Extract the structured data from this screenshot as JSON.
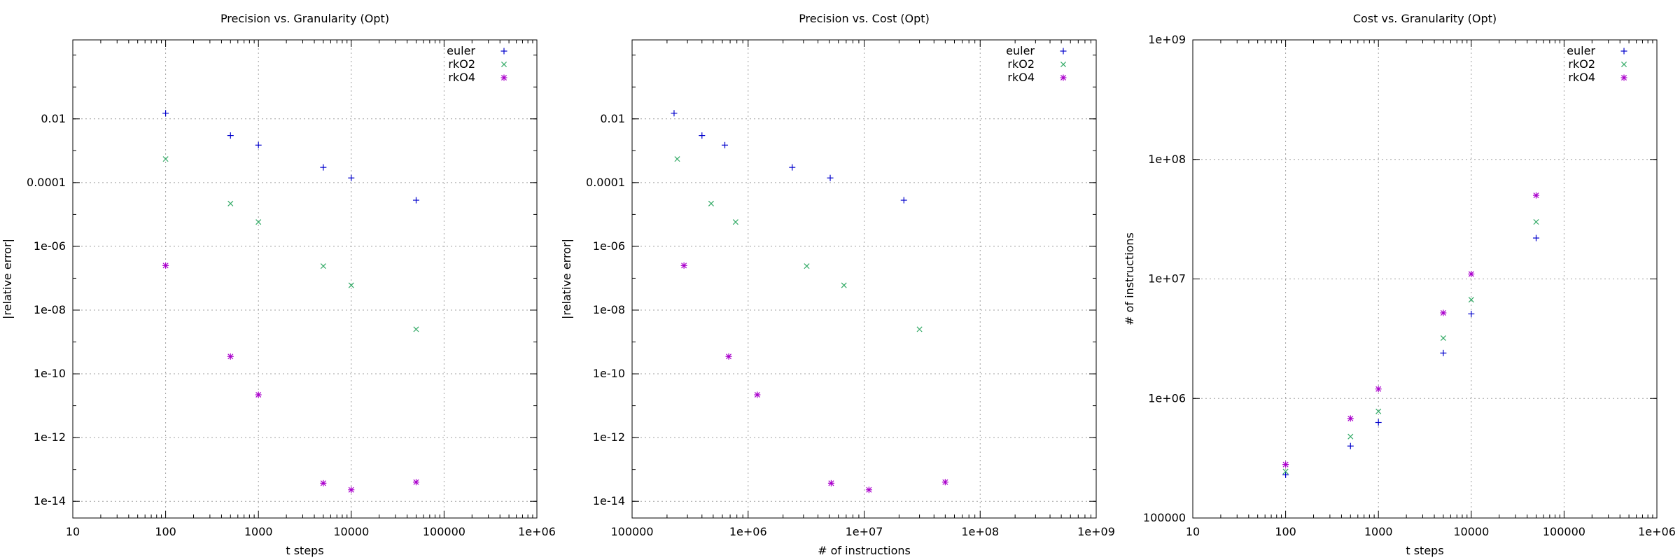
{
  "colors": {
    "euler": "#0000cc",
    "rkO2": "#33aa66",
    "rkO4": "#aa00cc"
  },
  "chart_data": [
    {
      "type": "scatter",
      "title": "Precision vs. Granularity (Opt)",
      "xlabel": "t steps",
      "ylabel": "|relative error|",
      "xscale": "log",
      "yscale": "log",
      "xlim": [
        10,
        1000000
      ],
      "ylim": [
        3e-15,
        3
      ],
      "xticks": [
        10,
        100,
        1000,
        10000,
        100000,
        1000000
      ],
      "xtick_labels": [
        "10",
        "100",
        "1000",
        "10000",
        "100000",
        "1e+06"
      ],
      "yticks": [
        1e-14,
        1e-12,
        1e-10,
        1e-08,
        1e-06,
        0.0001,
        0.01
      ],
      "ytick_labels": [
        "1e-14",
        "1e-12",
        "1e-10",
        "1e-08",
        "1e-06",
        "0.0001",
        "0.01"
      ],
      "grid": true,
      "legend": "top-right",
      "series": [
        {
          "name": "euler",
          "marker": "plus",
          "color_key": "euler",
          "points": [
            [
              100,
              0.015
            ],
            [
              500,
              0.003
            ],
            [
              1000,
              0.0015
            ],
            [
              5000,
              0.0003
            ],
            [
              10000,
              0.00014
            ],
            [
              50000,
              2.8e-05
            ]
          ]
        },
        {
          "name": "rkO2",
          "marker": "cross",
          "color_key": "rkO2",
          "points": [
            [
              100,
              0.00055
            ],
            [
              500,
              2.2e-05
            ],
            [
              1000,
              5.8e-06
            ],
            [
              5000,
              2.4e-07
            ],
            [
              10000,
              6e-08
            ],
            [
              50000,
              2.5e-09
            ]
          ]
        },
        {
          "name": "rkO4",
          "marker": "star",
          "color_key": "rkO4",
          "points": [
            [
              100,
              2.5e-07
            ],
            [
              500,
              3.5e-10
            ],
            [
              1000,
              2.2e-11
            ],
            [
              5000,
              3.7e-14
            ],
            [
              10000,
              2.3e-14
            ],
            [
              50000,
              4e-14
            ]
          ]
        }
      ]
    },
    {
      "type": "scatter",
      "title": "Precision vs. Cost (Opt)",
      "xlabel": "# of instructions",
      "ylabel": "|relative error|",
      "xscale": "log",
      "yscale": "log",
      "xlim": [
        100000,
        1000000000
      ],
      "ylim": [
        3e-15,
        3
      ],
      "xticks": [
        100000,
        1000000,
        10000000,
        100000000,
        1000000000
      ],
      "xtick_labels": [
        "100000",
        "1e+06",
        "1e+07",
        "1e+08",
        "1e+09"
      ],
      "yticks": [
        1e-14,
        1e-12,
        1e-10,
        1e-08,
        1e-06,
        0.0001,
        0.01
      ],
      "ytick_labels": [
        "1e-14",
        "1e-12",
        "1e-10",
        "1e-08",
        "1e-06",
        "0.0001",
        "0.01"
      ],
      "grid": true,
      "legend": "top-right",
      "series": [
        {
          "name": "euler",
          "marker": "plus",
          "color_key": "euler",
          "points": [
            [
              230000,
              0.015
            ],
            [
              400000,
              0.003
            ],
            [
              630000,
              0.0015
            ],
            [
              2400000,
              0.0003
            ],
            [
              5100000,
              0.00014
            ],
            [
              22000000,
              2.8e-05
            ]
          ]
        },
        {
          "name": "rkO2",
          "marker": "cross",
          "color_key": "rkO2",
          "points": [
            [
              245000,
              0.00055
            ],
            [
              480000,
              2.2e-05
            ],
            [
              780000,
              5.8e-06
            ],
            [
              3200000,
              2.4e-07
            ],
            [
              6700000,
              6e-08
            ],
            [
              30000000,
              2.5e-09
            ]
          ]
        },
        {
          "name": "rkO4",
          "marker": "star",
          "color_key": "rkO4",
          "points": [
            [
              280000,
              2.5e-07
            ],
            [
              680000,
              3.5e-10
            ],
            [
              1200000,
              2.2e-11
            ],
            [
              5200000,
              3.7e-14
            ],
            [
              11000000,
              2.3e-14
            ],
            [
              50000000,
              4e-14
            ]
          ]
        }
      ]
    },
    {
      "type": "scatter",
      "title": "Cost vs. Granularity (Opt)",
      "xlabel": "t steps",
      "ylabel": "# of instructions",
      "xscale": "log",
      "yscale": "log",
      "xlim": [
        10,
        1000000
      ],
      "ylim": [
        100000,
        1000000000
      ],
      "xticks": [
        10,
        100,
        1000,
        10000,
        100000,
        1000000
      ],
      "xtick_labels": [
        "10",
        "100",
        "1000",
        "10000",
        "100000",
        "1e+06"
      ],
      "yticks": [
        100000,
        1000000,
        10000000,
        100000000,
        1000000000
      ],
      "ytick_labels": [
        "100000",
        "1e+06",
        "1e+07",
        "1e+08",
        "1e+09"
      ],
      "grid": true,
      "legend": "top-right",
      "series": [
        {
          "name": "euler",
          "marker": "plus",
          "color_key": "euler",
          "points": [
            [
              100,
              230000
            ],
            [
              500,
              400000
            ],
            [
              1000,
              630000
            ],
            [
              5000,
              2400000
            ],
            [
              10000,
              5100000
            ],
            [
              50000,
              22000000
            ]
          ]
        },
        {
          "name": "rkO2",
          "marker": "cross",
          "color_key": "rkO2",
          "points": [
            [
              100,
              245000
            ],
            [
              500,
              480000
            ],
            [
              1000,
              780000
            ],
            [
              5000,
              3200000
            ],
            [
              10000,
              6700000
            ],
            [
              50000,
              30000000
            ]
          ]
        },
        {
          "name": "rkO4",
          "marker": "star",
          "color_key": "rkO4",
          "points": [
            [
              100,
              280000
            ],
            [
              500,
              680000
            ],
            [
              1000,
              1200000
            ],
            [
              5000,
              5200000
            ],
            [
              10000,
              11000000
            ],
            [
              50000,
              50000000
            ]
          ]
        }
      ]
    }
  ]
}
